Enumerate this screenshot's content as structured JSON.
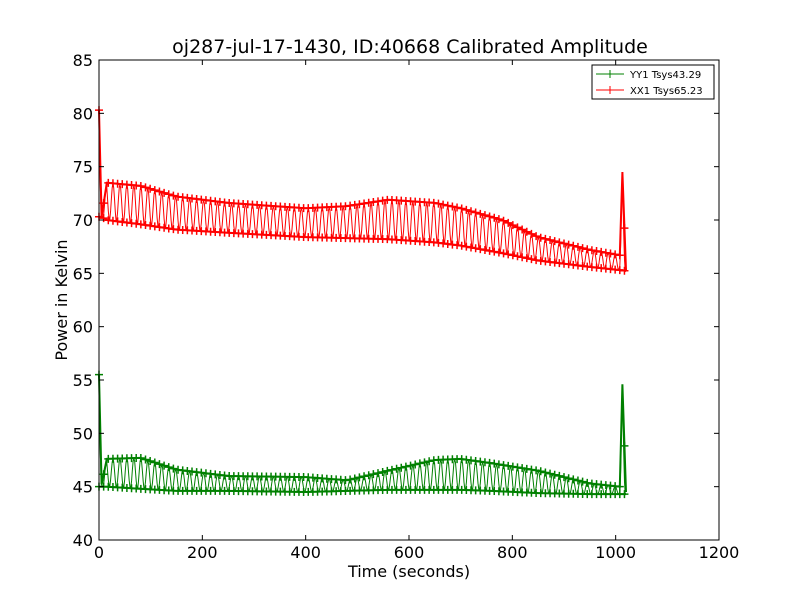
{
  "chart_data": {
    "type": "line",
    "title": "oj287-jul-17-1430, ID:40668 Calibrated Amplitude",
    "xlabel": "Time (seconds)",
    "ylabel": "Power in Kelvin",
    "xlim": [
      0,
      1200
    ],
    "ylim": [
      40,
      85
    ],
    "xticks": [
      0,
      200,
      400,
      600,
      800,
      1000,
      1200
    ],
    "yticks": [
      40,
      45,
      50,
      55,
      60,
      65,
      70,
      75,
      80,
      85
    ],
    "grid": false,
    "legend_position": "top-right",
    "marker": "+",
    "x_range": [
      0,
      1020
    ],
    "series": [
      {
        "name": "YY1 Tsys43.29",
        "color": "#008000",
        "upper_envelope": [
          [
            0,
            55.5
          ],
          [
            5,
            45.2
          ],
          [
            15,
            47.6
          ],
          [
            80,
            47.7
          ],
          [
            150,
            46.6
          ],
          [
            250,
            46.0
          ],
          [
            400,
            45.9
          ],
          [
            480,
            45.6
          ],
          [
            560,
            46.5
          ],
          [
            650,
            47.5
          ],
          [
            700,
            47.6
          ],
          [
            760,
            47.2
          ],
          [
            850,
            46.5
          ],
          [
            950,
            45.3
          ],
          [
            1008,
            45.0
          ],
          [
            1013,
            54.6
          ],
          [
            1020,
            44.5
          ]
        ],
        "lower_envelope": [
          [
            0,
            45.0
          ],
          [
            5,
            45.0
          ],
          [
            15,
            45.0
          ],
          [
            80,
            44.8
          ],
          [
            150,
            44.6
          ],
          [
            250,
            44.6
          ],
          [
            400,
            44.5
          ],
          [
            480,
            44.6
          ],
          [
            560,
            44.7
          ],
          [
            650,
            44.7
          ],
          [
            700,
            44.7
          ],
          [
            760,
            44.6
          ],
          [
            850,
            44.4
          ],
          [
            950,
            44.3
          ],
          [
            1008,
            44.3
          ],
          [
            1013,
            44.3
          ],
          [
            1020,
            44.3
          ]
        ]
      },
      {
        "name": "XX1 Tsys65.23",
        "color": "#ff0000",
        "upper_envelope": [
          [
            0,
            80.3
          ],
          [
            5,
            70.3
          ],
          [
            15,
            73.5
          ],
          [
            80,
            73.2
          ],
          [
            150,
            72.2
          ],
          [
            250,
            71.6
          ],
          [
            400,
            71.1
          ],
          [
            480,
            71.3
          ],
          [
            560,
            71.9
          ],
          [
            650,
            71.6
          ],
          [
            700,
            71.1
          ],
          [
            780,
            70.0
          ],
          [
            850,
            68.4
          ],
          [
            950,
            67.2
          ],
          [
            1008,
            66.7
          ],
          [
            1013,
            74.5
          ],
          [
            1020,
            65.3
          ]
        ],
        "lower_envelope": [
          [
            0,
            70.3
          ],
          [
            5,
            70.3
          ],
          [
            15,
            70.0
          ],
          [
            80,
            69.6
          ],
          [
            150,
            69.1
          ],
          [
            250,
            68.8
          ],
          [
            400,
            68.4
          ],
          [
            480,
            68.3
          ],
          [
            560,
            68.2
          ],
          [
            650,
            67.9
          ],
          [
            700,
            67.6
          ],
          [
            780,
            66.9
          ],
          [
            850,
            66.2
          ],
          [
            950,
            65.6
          ],
          [
            1008,
            65.3
          ],
          [
            1013,
            65.3
          ],
          [
            1020,
            65.2
          ]
        ]
      }
    ]
  }
}
